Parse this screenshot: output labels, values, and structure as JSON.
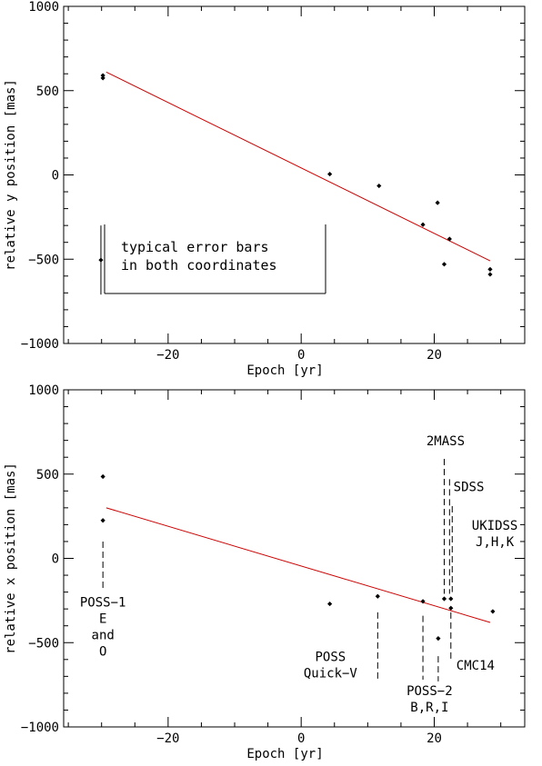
{
  "chart_data": [
    {
      "type": "scatter",
      "xlabel": "Epoch [yr]",
      "ylabel": "relative y position [mas]",
      "xlim": [
        -35.7,
        33.6
      ],
      "ylim": [
        -1000,
        1000
      ],
      "xticks": [
        -20,
        0,
        20
      ],
      "yticks": [
        -1000,
        -500,
        0,
        500,
        1000
      ],
      "tick_labels_x": [
        "−20",
        "0",
        "20"
      ],
      "tick_labels_y": [
        "−1000",
        "−500",
        "0",
        "500",
        "1000"
      ],
      "points": [
        {
          "x": -29.8,
          "y": 590
        },
        {
          "x": -29.8,
          "y": 575
        },
        {
          "x": 4.3,
          "y": 5
        },
        {
          "x": 11.7,
          "y": -65
        },
        {
          "x": 18.3,
          "y": -295
        },
        {
          "x": 20.5,
          "y": -165
        },
        {
          "x": 21.5,
          "y": -530
        },
        {
          "x": 22.3,
          "y": -380
        },
        {
          "x": 28.4,
          "y": -560
        },
        {
          "x": 28.4,
          "y": -590
        }
      ],
      "fit": {
        "x": [
          -29.3,
          28.4
        ],
        "y": [
          610,
          -510
        ],
        "color": "#cc0000"
      },
      "legend": {
        "lines": [
          "typical error bars",
          "in both coordinates"
        ],
        "errbar_x_epoch": -30.1,
        "errbar_y_center": -505,
        "errbar_y_halfwidth": 205
      }
    },
    {
      "type": "scatter",
      "xlabel": "Epoch [yr]",
      "ylabel": "relative x position [mas]",
      "xlim": [
        -35.7,
        33.6
      ],
      "ylim": [
        -1000,
        1000
      ],
      "xticks": [
        -20,
        0,
        20
      ],
      "yticks": [
        -1000,
        -500,
        0,
        500,
        1000
      ],
      "tick_labels_x": [
        "−20",
        "0",
        "20"
      ],
      "tick_labels_y": [
        "−1000",
        "−500",
        "0",
        "500",
        "1000"
      ],
      "points": [
        {
          "x": -29.8,
          "y": 485
        },
        {
          "x": -29.8,
          "y": 225
        },
        {
          "x": 4.3,
          "y": -270
        },
        {
          "x": 11.5,
          "y": -225
        },
        {
          "x": 18.3,
          "y": -255
        },
        {
          "x": 20.6,
          "y": -475
        },
        {
          "x": 21.5,
          "y": -240
        },
        {
          "x": 22.5,
          "y": -240
        },
        {
          "x": 22.5,
          "y": -295
        },
        {
          "x": 28.8,
          "y": -315
        }
      ],
      "fit": {
        "x": [
          -29.3,
          28.4
        ],
        "y": [
          300,
          -380
        ],
        "color": "#cc0000"
      },
      "annotations": [
        {
          "lines": [
            "POSS−1",
            "E",
            "and",
            "O"
          ],
          "line_x": -29.8,
          "line_y": [
            100,
            -190
          ],
          "text_x": -29.8,
          "text_y": -285
        },
        {
          "lines": [
            "POSS",
            "Quick−V"
          ],
          "line_x": 11.5,
          "line_y": [
            -320,
            -720
          ],
          "text_x": 4.4,
          "text_y": -610
        },
        {
          "lines": [
            "POSS−2",
            "B,R,I"
          ],
          "line_x": 18.3,
          "line_y": [
            -340,
            -720
          ],
          "text_x": 19.3,
          "text_y": -810
        },
        {
          "lines": [
            "2MASS"
          ],
          "line_x": 21.5,
          "line_y": [
            590,
            -210
          ],
          "text_x": 21.7,
          "text_y": 670
        },
        {
          "lines": [
            "SDSS"
          ],
          "line_x": 22.3,
          "line_y": [
            470,
            -210
          ],
          "text_x": 25.2,
          "text_y": 400
        },
        {
          "lines": [
            "UKIDSS",
            "J,H,K"
          ],
          "line_x": 22.7,
          "line_y": [
            310,
            -200
          ],
          "text_x": 29.1,
          "text_y": 170
        },
        {
          "lines": [
            "CMC14"
          ],
          "line_x": 20.6,
          "line_y": [
            -580,
            -730
          ],
          "text_x": 26.2,
          "text_y": -660
        },
        {
          "lines": [],
          "line_x": 22.5,
          "line_y": [
            -320,
            -600
          ],
          "text_x": 22.5,
          "text_y": -600
        }
      ]
    }
  ]
}
